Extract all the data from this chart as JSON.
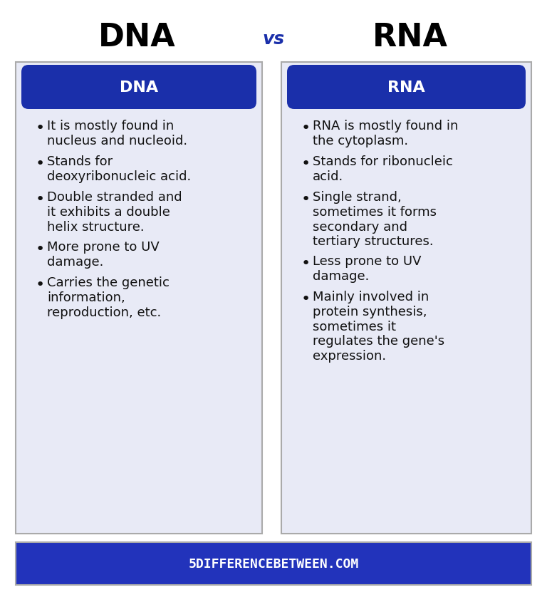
{
  "title_left": "DNA",
  "title_right": "RNA",
  "title_vs": "vs",
  "title_fontsize": 32,
  "vs_fontsize": 18,
  "header_color": "#1a2faa",
  "header_text_color": "#ffffff",
  "card_bg_color": "#e8eaf6",
  "card_border_color": "#cccccc",
  "body_bg": "#ffffff",
  "footer_bg": "#2233bb",
  "footer_text": "5DIFFERENCEBETWEEN.COM",
  "footer_text_color": "#ffffff",
  "dna_points": [
    "It is mostly found in\nnucleus and nucleoid.",
    "Stands for\ndeoxyribonucleic acid.",
    "Double stranded and\nit exhibits a double\nhelix structure.",
    "More prone to UV\ndamage.",
    "Carries the genetic\ninformation,\nreproduction, etc."
  ],
  "rna_points": [
    "RNA is mostly found in\nthe cytoplasm.",
    "Stands for ribonucleic\nacid.",
    "Single strand,\nsometimes it forms\nsecondary and\ntertiary structures.",
    "Less prone to UV\ndamage.",
    "Mainly involved in\nprotein synthesis,\nsometimes it\nregulates the gene's\nexpression."
  ]
}
